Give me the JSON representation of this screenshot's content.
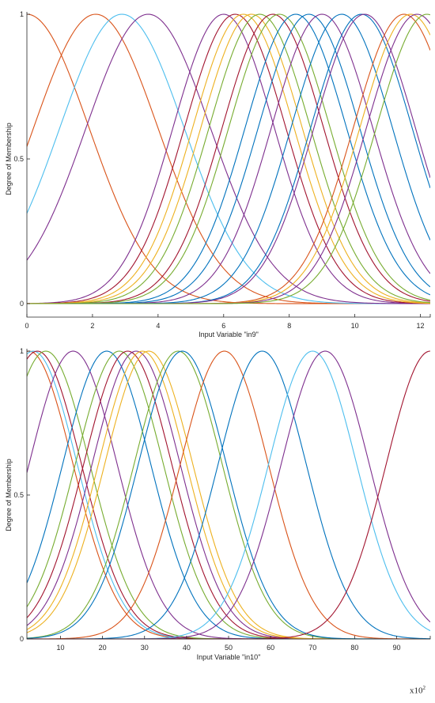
{
  "corner_note": "x10",
  "corner_note_sup": "2",
  "chart_data": [
    {
      "type": "line",
      "xlabel": "Input Variable \"in9\"",
      "ylabel": "Degree of Membership",
      "xlim": [
        0,
        12.3
      ],
      "ylim": [
        0,
        1
      ],
      "xticks": [
        0,
        2,
        4,
        6,
        8,
        10,
        12
      ],
      "yticks": [
        0,
        0.5,
        1
      ],
      "ytick_labels": [
        "0",
        "0.5",
        "1"
      ],
      "grid": false,
      "series": [
        {
          "mf": "gaussian",
          "center": 0.0,
          "sigma": 1.9,
          "color": "#d95319"
        },
        {
          "mf": "gaussian",
          "center": 2.1,
          "sigma": 1.9,
          "color": "#d95319"
        },
        {
          "mf": "gaussian",
          "center": 2.9,
          "sigma": 1.9,
          "color": "#4dbeee"
        },
        {
          "mf": "gaussian",
          "center": 3.7,
          "sigma": 1.9,
          "color": "#7e2f8e"
        },
        {
          "mf": "gaussian",
          "center": 6.0,
          "sigma": 1.55,
          "color": "#7e2f8e"
        },
        {
          "mf": "gaussian",
          "center": 6.35,
          "sigma": 1.55,
          "color": "#a2142f"
        },
        {
          "mf": "gaussian",
          "center": 6.6,
          "sigma": 1.55,
          "color": "#edb120"
        },
        {
          "mf": "gaussian",
          "center": 6.85,
          "sigma": 1.55,
          "color": "#edb120"
        },
        {
          "mf": "gaussian",
          "center": 7.1,
          "sigma": 1.55,
          "color": "#77ac30"
        },
        {
          "mf": "gaussian",
          "center": 7.5,
          "sigma": 1.55,
          "color": "#a2142f"
        },
        {
          "mf": "gaussian",
          "center": 7.7,
          "sigma": 1.55,
          "color": "#77ac30"
        },
        {
          "mf": "gaussian",
          "center": 8.2,
          "sigma": 1.55,
          "color": "#0072bd"
        },
        {
          "mf": "gaussian",
          "center": 8.6,
          "sigma": 1.55,
          "color": "#0072bd"
        },
        {
          "mf": "gaussian",
          "center": 9.0,
          "sigma": 1.55,
          "color": "#7e2f8e"
        },
        {
          "mf": "gaussian",
          "center": 9.6,
          "sigma": 1.55,
          "color": "#0072bd"
        },
        {
          "mf": "gaussian",
          "center": 10.2,
          "sigma": 1.55,
          "color": "#0072bd"
        },
        {
          "mf": "gaussian",
          "center": 10.3,
          "sigma": 1.55,
          "color": "#7e2f8e"
        },
        {
          "mf": "gaussian",
          "center": 11.5,
          "sigma": 1.55,
          "color": "#d95319"
        },
        {
          "mf": "gaussian",
          "center": 11.7,
          "sigma": 1.55,
          "color": "#edb120"
        },
        {
          "mf": "gaussian",
          "center": 11.9,
          "sigma": 1.55,
          "color": "#7e2f8e"
        },
        {
          "mf": "gaussian",
          "center": 12.2,
          "sigma": 1.55,
          "color": "#77ac30"
        }
      ]
    },
    {
      "type": "line",
      "xlabel": "Input Variable \"in10\"",
      "ylabel": "Degree of Membership",
      "xlim": [
        2,
        98
      ],
      "ylim": [
        0,
        1
      ],
      "xticks": [
        10,
        20,
        30,
        40,
        50,
        60,
        70,
        80,
        90
      ],
      "yticks": [
        0,
        0.5,
        1
      ],
      "ytick_labels": [
        "0",
        "0.5",
        "1"
      ],
      "grid": false,
      "series": [
        {
          "mf": "gaussian",
          "center": 2.5,
          "sigma": 10.5,
          "color": "#d95319"
        },
        {
          "mf": "gaussian",
          "center": 3.5,
          "sigma": 10.5,
          "color": "#4dbeee"
        },
        {
          "mf": "gaussian",
          "center": 4.5,
          "sigma": 10.5,
          "color": "#a2142f"
        },
        {
          "mf": "gaussian",
          "center": 6.5,
          "sigma": 10.5,
          "color": "#77ac30"
        },
        {
          "mf": "gaussian",
          "center": 13.0,
          "sigma": 10.5,
          "color": "#7e2f8e"
        },
        {
          "mf": "gaussian",
          "center": 21.0,
          "sigma": 10.5,
          "color": "#0072bd"
        },
        {
          "mf": "gaussian",
          "center": 24.0,
          "sigma": 10.5,
          "color": "#77ac30"
        },
        {
          "mf": "gaussian",
          "center": 26.0,
          "sigma": 10.5,
          "color": "#a2142f"
        },
        {
          "mf": "gaussian",
          "center": 28.0,
          "sigma": 10.5,
          "color": "#7e2f8e"
        },
        {
          "mf": "gaussian",
          "center": 29.5,
          "sigma": 10.5,
          "color": "#edb120"
        },
        {
          "mf": "gaussian",
          "center": 31.0,
          "sigma": 10.5,
          "color": "#edb120"
        },
        {
          "mf": "gaussian",
          "center": 38.0,
          "sigma": 10.5,
          "color": "#77ac30"
        },
        {
          "mf": "gaussian",
          "center": 39.0,
          "sigma": 10.5,
          "color": "#0072bd"
        },
        {
          "mf": "gaussian",
          "center": 49.0,
          "sigma": 10.5,
          "color": "#d95319"
        },
        {
          "mf": "gaussian",
          "center": 58.0,
          "sigma": 10.5,
          "color": "#0072bd"
        },
        {
          "mf": "gaussian",
          "center": 70.0,
          "sigma": 10.5,
          "color": "#4dbeee"
        },
        {
          "mf": "gaussian",
          "center": 73.0,
          "sigma": 10.5,
          "color": "#7e2f8e"
        },
        {
          "mf": "gaussian",
          "center": 98.0,
          "sigma": 10.5,
          "color": "#a2142f"
        }
      ]
    }
  ]
}
